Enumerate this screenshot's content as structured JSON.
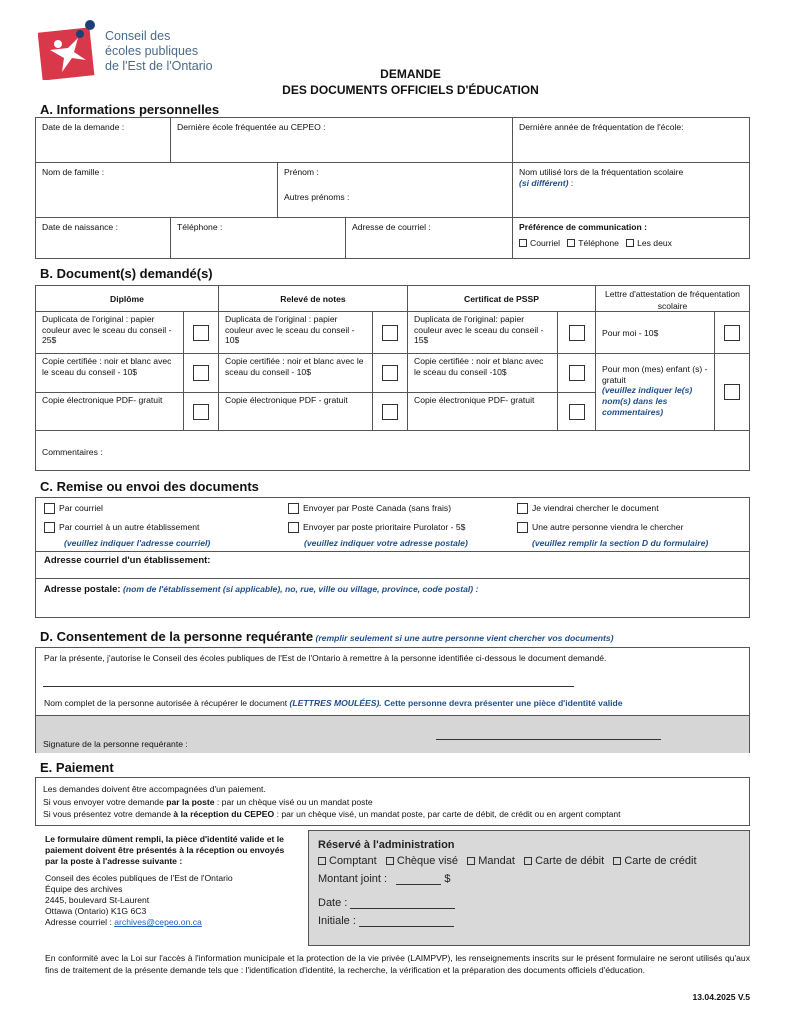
{
  "logo": {
    "lines": [
      "Conseil des",
      "écoles publiques",
      "de l'Est de l'Ontario"
    ],
    "colors": {
      "red": "#d9384b",
      "navy": "#1c3f7a",
      "text": "#4a6b8a"
    }
  },
  "title": {
    "line1": "DEMANDE",
    "line2": "DES DOCUMENTS OFFICIELS D'ÉDUCATION"
  },
  "sectionA": {
    "heading": "A.   Informations personnelles",
    "date_demande": "Date de la demande :",
    "derniere_ecole": "Dernière école fréquentée au CEPEO :",
    "derniere_annee": "Dernière année de fréquentation de l'école:",
    "nom_famille": "Nom de famille :",
    "prenom": "Prénom :",
    "autres_prenoms": "Autres prénoms :",
    "nom_utilise": "Nom utilisé lors de la fréquentation scolaire",
    "si_different": "(si différent)",
    "si_different_suffix": " :",
    "date_naissance": "Date de naissance :",
    "telephone": "Téléphone :",
    "courriel": "Adresse de courriel :",
    "preference": "Préférence de communication :",
    "pref_options": [
      "Courriel",
      "Téléphone",
      "Les deux"
    ]
  },
  "sectionB": {
    "heading": "B.   Document(s) demandé(s)",
    "headers": [
      "Diplôme",
      "Relevé de notes",
      "Certificat de PSSP",
      "Lettre d'attestation de fréquentation scolaire"
    ],
    "diplome": [
      "Duplicata de l'original : papier couleur avec le sceau du conseil  - 25$",
      "Copie certifiée : noir et blanc avec le sceau du conseil - 10$",
      "Copie électronique PDF- gratuit"
    ],
    "releve": [
      "Duplicata de l'original : papier couleur avec le sceau du conseil - 10$",
      "Copie certifiée : noir et blanc avec le sceau du conseil - 10$",
      "Copie électronique PDF - gratuit"
    ],
    "certificat": [
      "Duplicata de l'original: papier couleur avec le sceau du conseil - 15$",
      "Copie certifiée : noir et blanc avec le sceau du conseil -10$",
      "Copie électronique PDF- gratuit"
    ],
    "lettre": [
      "Pour moi - 10$",
      "Pour mon (mes) enfant (s) - gratuit"
    ],
    "lettre_hint": "(veuillez indiquer le(s) nom(s) dans les commentaires)",
    "commentaires": "Commentaires :"
  },
  "sectionC": {
    "heading": "C.   Remise ou envoi des documents",
    "options": [
      "Par courriel",
      "Envoyer par Poste Canada (sans frais)",
      "Je viendrai chercher le document",
      "Par courriel à un autre établissement",
      "Envoyer par poste prioritaire Purolator - 5$",
      "Une autre personne viendra le chercher"
    ],
    "hints": [
      "(veuillez indiquer l'adresse courriel)",
      "(veuillez indiquer votre adresse postale)",
      "(veuillez remplir la section D du formulaire)"
    ],
    "adresse_courriel": "Adresse courriel d'un établissement:",
    "adresse_postale": "Adresse postale:",
    "adresse_postale_hint": "(nom de l'établissement (si applicable), no, rue, ville ou village, province, code postal) :"
  },
  "sectionD": {
    "heading": "D.   Consentement de la personne requérante",
    "heading_hint": "(remplir seulement si une autre personne vient chercher vos documents)",
    "autorisation": "Par la présente, j'autorise le Conseil des écoles publiques de l'Est de l'Ontario à remettre à la personne identifiée ci-dessous le document demandé.",
    "nom_complet": "Nom complet de la personne autorisée à récupérer le document ",
    "lettres": "(LETTRES MOULÉES).",
    "piece": " Cette personne devra présenter une pièce d'identité valide",
    "signature": "Signature de la personne requérante :"
  },
  "sectionE": {
    "heading": "E.   Paiement",
    "line1": "Les demandes doivent être accompagnées d'un paiement.",
    "line2a": "Si vous envoyer votre demande ",
    "line2b": "par la poste",
    "line2c": " : par un chèque visé ou  un mandat poste",
    "line3a": "Si vous présentez votre demande ",
    "line3b": "à la réception du CEPEO",
    "line3c": " : par un chèque visé, un mandat poste, par carte de débit, de crédit ou en argent comptant"
  },
  "instructions": {
    "bold": "Le formulaire dûment rempli, la pièce d'identité valide et le paiement doivent être présentés à la réception ou envoyés par la poste à l'adresse suivante :",
    "address": [
      "Conseil des écoles publiques de l'Est de l'Ontario",
      "Équipe des archives",
      "2445, boulevard St-Laurent",
      "Ottawa (Ontario) K1G 6C3"
    ],
    "email_label": "Adresse courriel : ",
    "email": "archives@cepeo.on.ca"
  },
  "admin": {
    "title": "Réservé à l'administration",
    "options": [
      "Comptant",
      "Chèque visé",
      "Mandat",
      "Carte de débit",
      "Carte de crédit"
    ],
    "montant": "Montant joint :",
    "currency": "$",
    "date": "Date :",
    "initiale": "Initiale :"
  },
  "footer": {
    "privacy": "En conformité avec la Loi sur l'accès à l'information municipale et la protection de la vie privée (LAIMPVP), les renseignements inscrits sur le présent formulaire ne seront utilisés qu'aux fins de traitement de la présente demande tels que : l'identification d'identité, la recherche, la vérification et la préparation des documents officiels d'éducation.",
    "version": "13.04.2025 V.5"
  }
}
